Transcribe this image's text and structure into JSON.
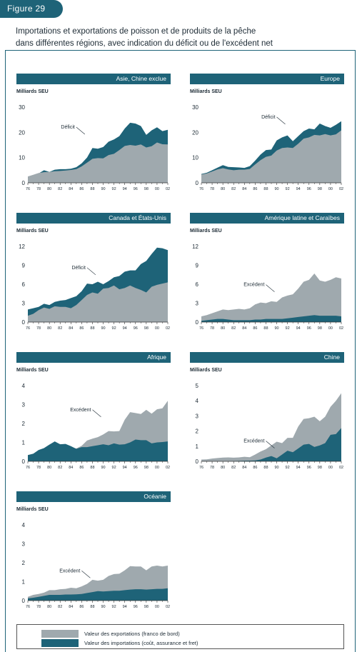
{
  "figure_label": "Figure 29",
  "title_line1": "Importations et exportations de poisson et de produits de la pêche",
  "title_line2": "dans différentes régions, avec indication du déficit ou de l'excédent net",
  "colors": {
    "exports": "#9fa9ae",
    "imports": "#1e6378",
    "header": "#1e6378"
  },
  "legend": {
    "exports_label": "Valeur des exportations (franco de bord)",
    "imports_label": "Valeur des importations (coût, assurance et fret)"
  },
  "chart_data": [
    {
      "type": "area",
      "title": "Asie, Chine exclue",
      "ylabel": "Milliards SEU",
      "ylim": [
        0,
        30
      ],
      "yticks": [
        0,
        10,
        20,
        30
      ],
      "x": [
        1976,
        1977,
        1978,
        1979,
        1980,
        1981,
        1982,
        1983,
        1984,
        1985,
        1986,
        1987,
        1988,
        1989,
        1990,
        1991,
        1992,
        1993,
        1994,
        1995,
        1996,
        1997,
        1998,
        1999,
        2000,
        2001,
        2002
      ],
      "xticks": [
        "76",
        "78",
        "80",
        "82",
        "84",
        "86",
        "88",
        "90",
        "92",
        "94",
        "96",
        "98",
        "00",
        "02"
      ],
      "series": [
        {
          "name": "Valeur des exportations (franco de bord)",
          "values": [
            2.5,
            3.2,
            3.9,
            4.2,
            4.3,
            4.6,
            4.7,
            4.9,
            5.1,
            5.4,
            6.5,
            8,
            9.5,
            9.8,
            9.7,
            11,
            11.5,
            13,
            14.6,
            15,
            14.7,
            15.2,
            14,
            14.5,
            16,
            15.3,
            15.2
          ]
        },
        {
          "name": "Valeur des importations (coût, assurance et fret)",
          "values": [
            2.4,
            3.0,
            3.7,
            5.0,
            4.3,
            5.2,
            5.4,
            5.4,
            5.6,
            6.2,
            7.7,
            10,
            13.8,
            13.5,
            14.2,
            16.3,
            17.2,
            18.5,
            21.5,
            23.8,
            23.5,
            22.5,
            19,
            20.8,
            22,
            20.5,
            21
          ]
        }
      ],
      "annotation": "Déficit"
    },
    {
      "type": "area",
      "title": "Europe",
      "ylabel": "Milliards SEU",
      "ylim": [
        0,
        30
      ],
      "yticks": [
        0,
        10,
        20,
        30
      ],
      "x": [
        1976,
        1977,
        1978,
        1979,
        1980,
        1981,
        1982,
        1983,
        1984,
        1985,
        1986,
        1987,
        1988,
        1989,
        1990,
        1991,
        1992,
        1993,
        1994,
        1995,
        1996,
        1997,
        1998,
        1999,
        2000,
        2001,
        2002
      ],
      "xticks": [
        "76",
        "78",
        "80",
        "82",
        "84",
        "86",
        "88",
        "90",
        "92",
        "94",
        "96",
        "98",
        "00",
        "02"
      ],
      "series": [
        {
          "name": "Valeur des exportations (franco de bord)",
          "values": [
            3.3,
            3.7,
            4.5,
            5.3,
            5.8,
            5.3,
            5,
            5.2,
            5.2,
            5.5,
            7.3,
            9,
            10.3,
            10.8,
            12.8,
            13.8,
            14,
            13.8,
            15.5,
            17.5,
            18,
            19,
            18.8,
            19.3,
            18.8,
            19.2,
            20.8
          ]
        },
        {
          "name": "Valeur des importations (coût, assurance et fret)",
          "values": [
            3.5,
            4,
            5,
            6,
            7,
            6.3,
            6.2,
            6.1,
            5.9,
            6.6,
            8.8,
            11.2,
            13,
            13.2,
            16.8,
            18,
            18.8,
            16.5,
            18.5,
            20.5,
            21.5,
            21.2,
            23.5,
            22.5,
            21.8,
            23,
            24.4
          ]
        }
      ],
      "annotation": "Déficit"
    },
    {
      "type": "area",
      "title": "Canada et États-Unis",
      "ylabel": "Milliards SEU",
      "ylim": [
        0,
        12
      ],
      "yticks": [
        0,
        3,
        6,
        9,
        12
      ],
      "x": [
        1976,
        1977,
        1978,
        1979,
        1980,
        1981,
        1982,
        1983,
        1984,
        1985,
        1986,
        1987,
        1988,
        1989,
        1990,
        1991,
        1992,
        1993,
        1994,
        1995,
        1996,
        1997,
        1998,
        1999,
        2000,
        2001,
        2002
      ],
      "xticks": [
        "76",
        "78",
        "80",
        "82",
        "84",
        "86",
        "88",
        "90",
        "92",
        "94",
        "96",
        "98",
        "00",
        "02"
      ],
      "series": [
        {
          "name": "Valeur des exportations (franco de bord)",
          "values": [
            1,
            1.3,
            1.9,
            2.3,
            2.1,
            2.5,
            2.4,
            2.4,
            2.2,
            2.7,
            3.5,
            4.3,
            4.7,
            4.5,
            5.3,
            5.4,
            5.8,
            5.2,
            5.4,
            5.8,
            5.4,
            5.1,
            4.7,
            5.6,
            5.9,
            6.1,
            6.3
          ]
        },
        {
          "name": "Valeur des importations (coût, assurance et fret)",
          "values": [
            2,
            2.2,
            2.4,
            2.9,
            2.7,
            3.2,
            3.4,
            3.5,
            3.8,
            4.1,
            4.9,
            6.1,
            6,
            6.4,
            6,
            6.5,
            7.1,
            7.3,
            8,
            8.2,
            8.2,
            9.2,
            9.7,
            10.8,
            11.8,
            11.7,
            11.4
          ]
        }
      ],
      "annotation": "Déficit"
    },
    {
      "type": "area",
      "title": "Amérique latine et Caraïbes",
      "ylabel": "Milliards SEU",
      "ylim": [
        0,
        12
      ],
      "yticks": [
        0,
        3,
        6,
        9,
        12
      ],
      "x": [
        1976,
        1977,
        1978,
        1979,
        1980,
        1981,
        1982,
        1983,
        1984,
        1985,
        1986,
        1987,
        1988,
        1989,
        1990,
        1991,
        1992,
        1993,
        1994,
        1995,
        1996,
        1997,
        1998,
        1999,
        2000,
        2001,
        2002
      ],
      "xticks": [
        "76",
        "78",
        "80",
        "82",
        "84",
        "86",
        "88",
        "90",
        "92",
        "94",
        "96",
        "98",
        "00",
        "02"
      ],
      "series": [
        {
          "name": "Valeur des exportations (franco de bord)",
          "values": [
            0.9,
            1.1,
            1.4,
            1.7,
            2,
            1.9,
            2,
            2.1,
            2,
            2.2,
            2.8,
            3.1,
            3,
            3.3,
            3.2,
            3.9,
            4.2,
            4.4,
            5.3,
            6.4,
            6.7,
            7.7,
            6.6,
            6.4,
            6.7,
            7.1,
            6.9
          ]
        },
        {
          "name": "Valeur des importations (coût, assurance et fret)",
          "values": [
            0.2,
            0.3,
            0.4,
            0.5,
            0.5,
            0.4,
            0.3,
            0.3,
            0.3,
            0.3,
            0.4,
            0.4,
            0.5,
            0.5,
            0.5,
            0.5,
            0.6,
            0.7,
            0.8,
            0.9,
            1,
            1.1,
            1,
            1,
            1,
            1,
            0.9
          ]
        }
      ],
      "annotation": "Excédent"
    },
    {
      "type": "area",
      "title": "Afrique",
      "ylabel": "Milliards SEU",
      "ylim": [
        0,
        4
      ],
      "yticks": [
        0,
        1,
        2,
        3,
        4
      ],
      "x": [
        1976,
        1977,
        1978,
        1979,
        1980,
        1981,
        1982,
        1983,
        1984,
        1985,
        1986,
        1987,
        1988,
        1989,
        1990,
        1991,
        1992,
        1993,
        1994,
        1995,
        1996,
        1997,
        1998,
        1999,
        2000,
        2001,
        2002
      ],
      "xticks": [
        "76",
        "78",
        "80",
        "82",
        "84",
        "86",
        "88",
        "90",
        "92",
        "94",
        "96",
        "98",
        "00",
        "02"
      ],
      "series": [
        {
          "name": "Valeur des exportations (franco de bord)",
          "values": [
            0.33,
            0.4,
            0.55,
            0.7,
            0.88,
            1.02,
            0.9,
            0.9,
            0.75,
            0.68,
            0.82,
            1.1,
            1.2,
            1.28,
            1.42,
            1.6,
            1.58,
            1.6,
            2.2,
            2.6,
            2.55,
            2.5,
            2.72,
            2.52,
            2.75,
            2.8,
            3.2
          ]
        },
        {
          "name": "Valeur des importations (coût, assurance et fret)",
          "values": [
            0.33,
            0.4,
            0.6,
            0.7,
            0.88,
            1.05,
            0.9,
            0.92,
            0.8,
            0.66,
            0.75,
            0.75,
            0.8,
            0.85,
            0.9,
            0.85,
            0.95,
            0.88,
            0.9,
            1,
            1.15,
            1.12,
            1.12,
            0.95,
            1,
            1.02,
            1.05
          ]
        }
      ],
      "annotation": "Excédent"
    },
    {
      "type": "area",
      "title": "Chine",
      "ylabel": "Milliards SEU",
      "ylim": [
        0,
        5
      ],
      "yticks": [
        0,
        1,
        2,
        3,
        4,
        5
      ],
      "x": [
        1976,
        1977,
        1978,
        1979,
        1980,
        1981,
        1982,
        1983,
        1984,
        1985,
        1986,
        1987,
        1988,
        1989,
        1990,
        1991,
        1992,
        1993,
        1994,
        1995,
        1996,
        1997,
        1998,
        1999,
        2000,
        2001,
        2002
      ],
      "xticks": [
        "76",
        "78",
        "80",
        "82",
        "84",
        "86",
        "88",
        "90",
        "92",
        "94",
        "96",
        "98",
        "00",
        "02"
      ],
      "series": [
        {
          "name": "Valeur des exportations (franco de bord)",
          "values": [
            0.12,
            0.13,
            0.18,
            0.22,
            0.25,
            0.26,
            0.24,
            0.26,
            0.3,
            0.27,
            0.45,
            0.65,
            0.8,
            1.05,
            1.3,
            1.2,
            1.55,
            1.55,
            2.3,
            2.8,
            2.85,
            2.95,
            2.65,
            2.95,
            3.6,
            4,
            4.5
          ]
        },
        {
          "name": "Valeur des importations (coût, assurance et fret)",
          "values": [
            0,
            0,
            0,
            0,
            0,
            0,
            0.02,
            0.03,
            0.04,
            0.05,
            0.06,
            0.12,
            0.25,
            0.35,
            0.2,
            0.45,
            0.7,
            0.6,
            0.85,
            1.1,
            1.15,
            0.95,
            1.05,
            1.2,
            1.75,
            1.8,
            2.2
          ]
        }
      ],
      "annotation": "Excédent"
    },
    {
      "type": "area",
      "title": "Océanie",
      "ylabel": "Milliards SEU",
      "ylim": [
        0,
        4
      ],
      "yticks": [
        0,
        1,
        2,
        3,
        4
      ],
      "x": [
        1976,
        1977,
        1978,
        1979,
        1980,
        1981,
        1982,
        1983,
        1984,
        1985,
        1986,
        1987,
        1988,
        1989,
        1990,
        1991,
        1992,
        1993,
        1994,
        1995,
        1996,
        1997,
        1998,
        1999,
        2000,
        2001,
        2002
      ],
      "xticks": [
        "76",
        "78",
        "80",
        "82",
        "84",
        "86",
        "88",
        "90",
        "92",
        "94",
        "96",
        "98",
        "00",
        "02"
      ],
      "series": [
        {
          "name": "Valeur des exportations (franco de bord)",
          "values": [
            0.2,
            0.3,
            0.35,
            0.42,
            0.55,
            0.55,
            0.6,
            0.62,
            0.68,
            0.65,
            0.75,
            0.88,
            1.1,
            1.05,
            1.1,
            1.3,
            1.4,
            1.42,
            1.6,
            1.82,
            1.8,
            1.8,
            1.6,
            1.8,
            1.85,
            1.8,
            1.85
          ]
        },
        {
          "name": "Valeur des importations (coût, assurance et fret)",
          "values": [
            0.12,
            0.15,
            0.2,
            0.25,
            0.3,
            0.3,
            0.3,
            0.32,
            0.32,
            0.33,
            0.35,
            0.4,
            0.45,
            0.5,
            0.48,
            0.5,
            0.52,
            0.52,
            0.55,
            0.58,
            0.6,
            0.6,
            0.58,
            0.6,
            0.62,
            0.62,
            0.65
          ]
        }
      ],
      "annotation": "Excédent"
    }
  ]
}
